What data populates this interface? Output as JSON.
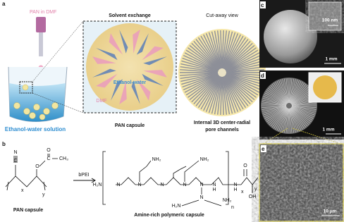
{
  "panels": {
    "a": {
      "label": "a",
      "pan_in_dmf": "PAN in DMF",
      "solvent_exchange": "Solvent exchange",
      "cutaway": "Cut-away view",
      "ethanol_water": "Ethanol-water",
      "dmf": "DMF",
      "pan_capsule": "PAN capsule",
      "pore_channels": [
        "Internal 3D center-radial",
        "pore channels"
      ],
      "solution": "Ethanol-water solution"
    },
    "b": {
      "label": "b",
      "reagent": "bPEI",
      "left_caption": "PAN capsule",
      "right_caption": "Amine-rich polymeric capsule",
      "left_atoms": [
        "N",
        "C",
        "O",
        "C",
        "O",
        "CH₃",
        "x",
        "y"
      ],
      "right_atoms": [
        "H₂N",
        "N",
        "NH₂",
        "N",
        "N",
        "N",
        "NH₂",
        "N",
        "N",
        "H",
        "N",
        "H₂N",
        "NH₂",
        "n",
        "N",
        "H",
        "O",
        "OH",
        "x",
        "y"
      ]
    },
    "c": {
      "label": "c",
      "inset_scale": "100 nm",
      "scale": "1 mm"
    },
    "d": {
      "label": "d",
      "scale": "1 mm"
    },
    "e": {
      "label": "e",
      "scale": "10 μm"
    }
  }
}
